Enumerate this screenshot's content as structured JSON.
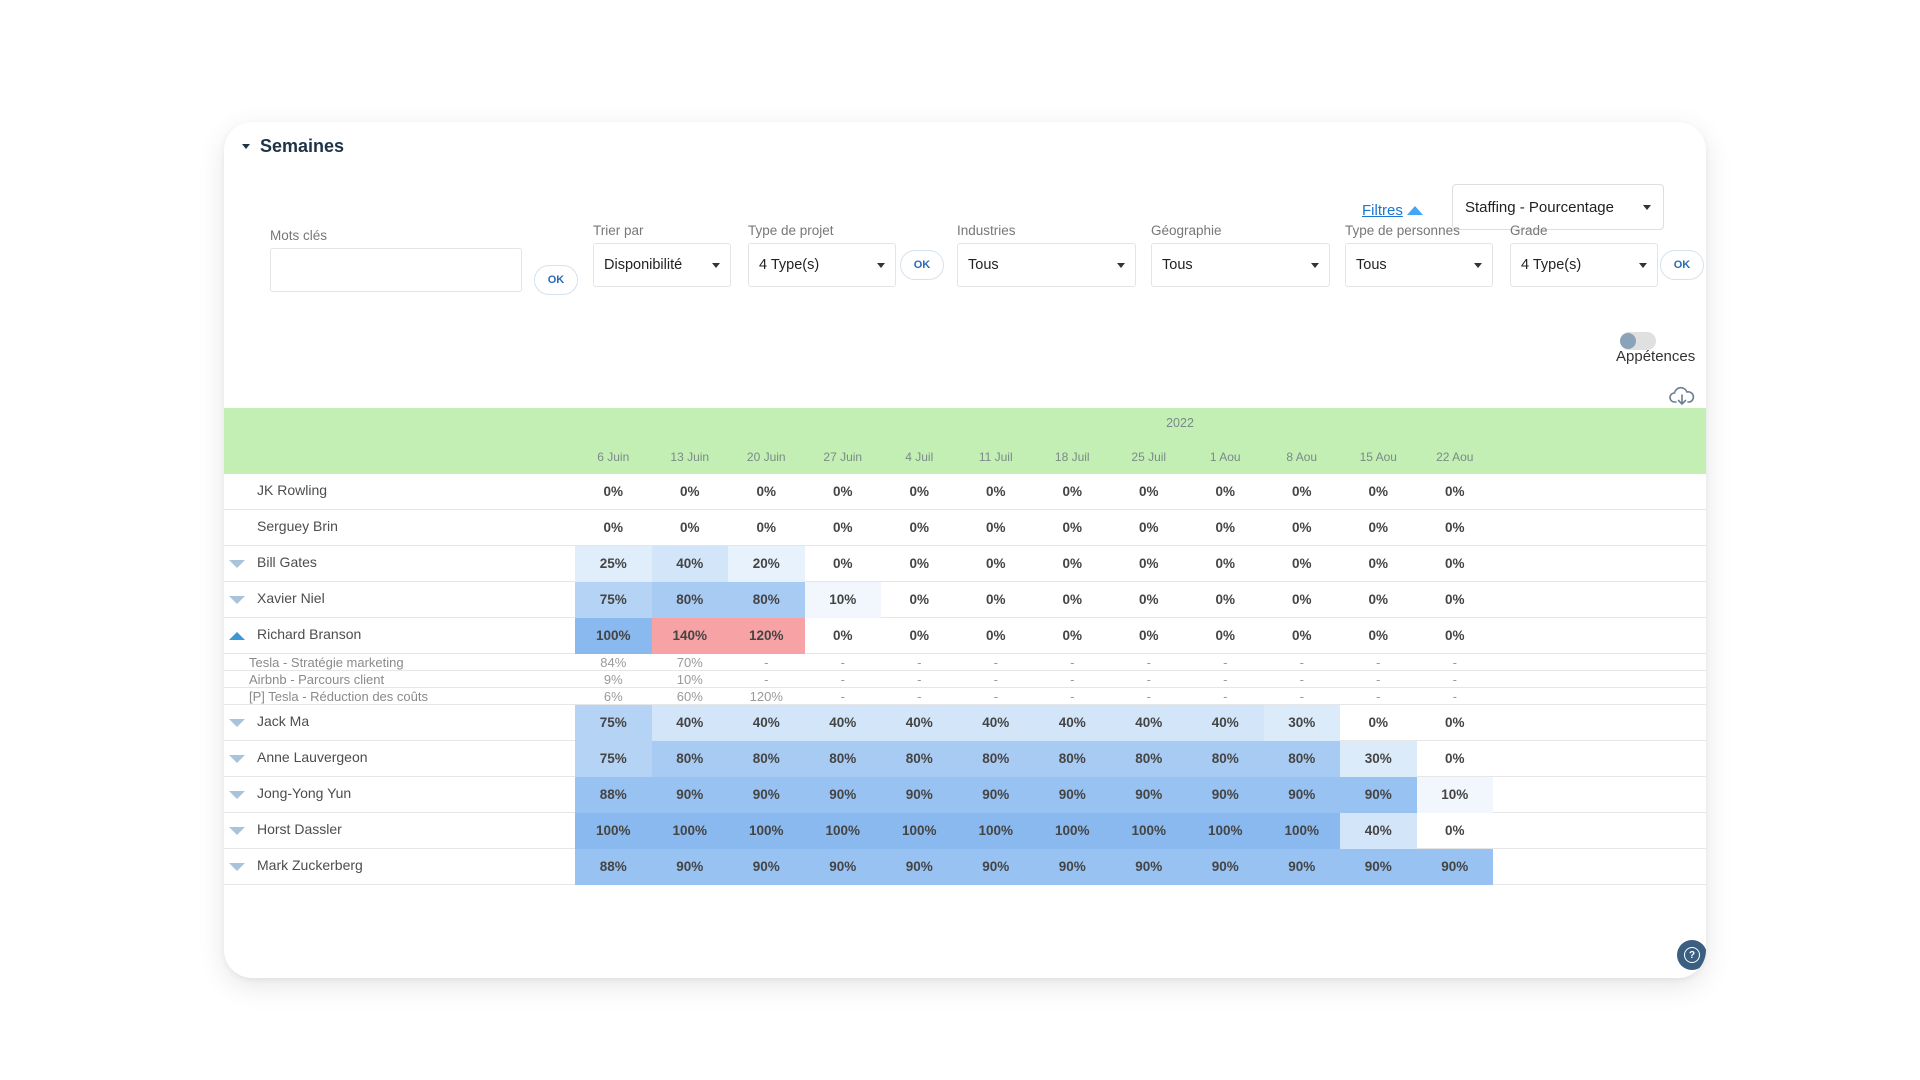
{
  "section": {
    "title": "Semaines"
  },
  "filters_link": "Filtres",
  "view_select": {
    "value": "Staffing - Pourcentage"
  },
  "filters": {
    "keywords": {
      "label": "Mots clés",
      "value": ""
    },
    "ok_label": "OK",
    "sort": {
      "label": "Trier par",
      "value": "Disponibilité"
    },
    "project_type": {
      "label": "Type de projet",
      "value": "4 Type(s)"
    },
    "industries": {
      "label": "Industries",
      "value": "Tous"
    },
    "geography": {
      "label": "Géographie",
      "value": "Tous"
    },
    "people_type": {
      "label": "Type de personnes",
      "value": "Tous"
    },
    "grade": {
      "label": "Grade",
      "value": "4 Type(s)"
    }
  },
  "toggle": {
    "label": "Appétences",
    "on": false
  },
  "grid": {
    "year": "2022",
    "weeks": [
      "6 Juin",
      "13 Juin",
      "20 Juin",
      "27 Juin",
      "4 Juil",
      "11 Juil",
      "18 Juil",
      "25 Juil",
      "1 Aou",
      "8 Aou",
      "15 Aou",
      "22 Aou"
    ],
    "rows": [
      {
        "name": "JK Rowling",
        "arrow": "",
        "values": [
          "0%",
          "0%",
          "0%",
          "0%",
          "0%",
          "0%",
          "0%",
          "0%",
          "0%",
          "0%",
          "0%",
          "0%"
        ],
        "levels": [
          0,
          0,
          0,
          0,
          0,
          0,
          0,
          0,
          0,
          0,
          0,
          0
        ]
      },
      {
        "name": "Serguey Brin",
        "arrow": "",
        "values": [
          "0%",
          "0%",
          "0%",
          "0%",
          "0%",
          "0%",
          "0%",
          "0%",
          "0%",
          "0%",
          "0%",
          "0%"
        ],
        "levels": [
          0,
          0,
          0,
          0,
          0,
          0,
          0,
          0,
          0,
          0,
          0,
          0
        ]
      },
      {
        "name": "Bill Gates",
        "arrow": "down",
        "values": [
          "25%",
          "40%",
          "20%",
          "0%",
          "0%",
          "0%",
          "0%",
          "0%",
          "0%",
          "0%",
          "0%",
          "0%"
        ],
        "levels": [
          25,
          40,
          20,
          0,
          0,
          0,
          0,
          0,
          0,
          0,
          0,
          0
        ]
      },
      {
        "name": "Xavier Niel",
        "arrow": "down",
        "values": [
          "75%",
          "80%",
          "80%",
          "10%",
          "0%",
          "0%",
          "0%",
          "0%",
          "0%",
          "0%",
          "0%",
          "0%"
        ],
        "levels": [
          75,
          80,
          80,
          10,
          0,
          0,
          0,
          0,
          0,
          0,
          0,
          0
        ]
      },
      {
        "name": "Richard Branson",
        "arrow": "up",
        "values": [
          "100%",
          "140%",
          "120%",
          "0%",
          "0%",
          "0%",
          "0%",
          "0%",
          "0%",
          "0%",
          "0%",
          "0%"
        ],
        "levels": [
          100,
          140,
          120,
          0,
          0,
          0,
          0,
          0,
          0,
          0,
          0,
          0
        ]
      },
      {
        "name": "Tesla - Stratégie marketing",
        "sub": true,
        "values": [
          "84%",
          "70%",
          "-",
          "-",
          "-",
          "-",
          "-",
          "-",
          "-",
          "-",
          "-",
          "-"
        ]
      },
      {
        "name": "Airbnb - Parcours client",
        "sub": true,
        "values": [
          "9%",
          "10%",
          "-",
          "-",
          "-",
          "-",
          "-",
          "-",
          "-",
          "-",
          "-",
          "-"
        ]
      },
      {
        "name": "[P] Tesla - Réduction des coûts",
        "sub": true,
        "values": [
          "6%",
          "60%",
          "120%",
          "-",
          "-",
          "-",
          "-",
          "-",
          "-",
          "-",
          "-",
          "-"
        ]
      },
      {
        "name": "Jack Ma",
        "arrow": "down",
        "values": [
          "75%",
          "40%",
          "40%",
          "40%",
          "40%",
          "40%",
          "40%",
          "40%",
          "40%",
          "30%",
          "0%",
          "0%"
        ],
        "levels": [
          75,
          40,
          40,
          40,
          40,
          40,
          40,
          40,
          40,
          30,
          0,
          0
        ]
      },
      {
        "name": "Anne Lauvergeon",
        "arrow": "down",
        "values": [
          "75%",
          "80%",
          "80%",
          "80%",
          "80%",
          "80%",
          "80%",
          "80%",
          "80%",
          "80%",
          "30%",
          "0%"
        ],
        "levels": [
          75,
          80,
          80,
          80,
          80,
          80,
          80,
          80,
          80,
          80,
          30,
          0
        ]
      },
      {
        "name": "Jong-Yong Yun",
        "arrow": "down",
        "values": [
          "88%",
          "90%",
          "90%",
          "90%",
          "90%",
          "90%",
          "90%",
          "90%",
          "90%",
          "90%",
          "90%",
          "10%"
        ],
        "levels": [
          88,
          90,
          90,
          90,
          90,
          90,
          90,
          90,
          90,
          90,
          90,
          10
        ]
      },
      {
        "name": "Horst Dassler",
        "arrow": "down",
        "values": [
          "100%",
          "100%",
          "100%",
          "100%",
          "100%",
          "100%",
          "100%",
          "100%",
          "100%",
          "100%",
          "40%",
          "0%"
        ],
        "levels": [
          100,
          100,
          100,
          100,
          100,
          100,
          100,
          100,
          100,
          100,
          40,
          0
        ]
      },
      {
        "name": "Mark Zuckerberg",
        "arrow": "down",
        "values": [
          "88%",
          "90%",
          "90%",
          "90%",
          "90%",
          "90%",
          "90%",
          "90%",
          "90%",
          "90%",
          "90%",
          "90%"
        ],
        "levels": [
          88,
          90,
          90,
          90,
          90,
          90,
          90,
          90,
          90,
          90,
          90,
          90
        ]
      }
    ]
  },
  "colors": {
    "header_bg": "#c3efb5",
    "over_capacity": "#f7a3a5",
    "level_100": "#89b9ef",
    "level_90": "#98c2f1",
    "level_80": "#a8cbf3",
    "level_75": "#b5d3f5",
    "level_40": "#d3e5f9",
    "level_30": "#dcebfa",
    "level_25": "#e0edfb",
    "level_20": "#e8f2fc",
    "level_10": "#f2f7fd"
  },
  "icons": {
    "download": "cloud-download-icon",
    "help": "help-icon"
  }
}
